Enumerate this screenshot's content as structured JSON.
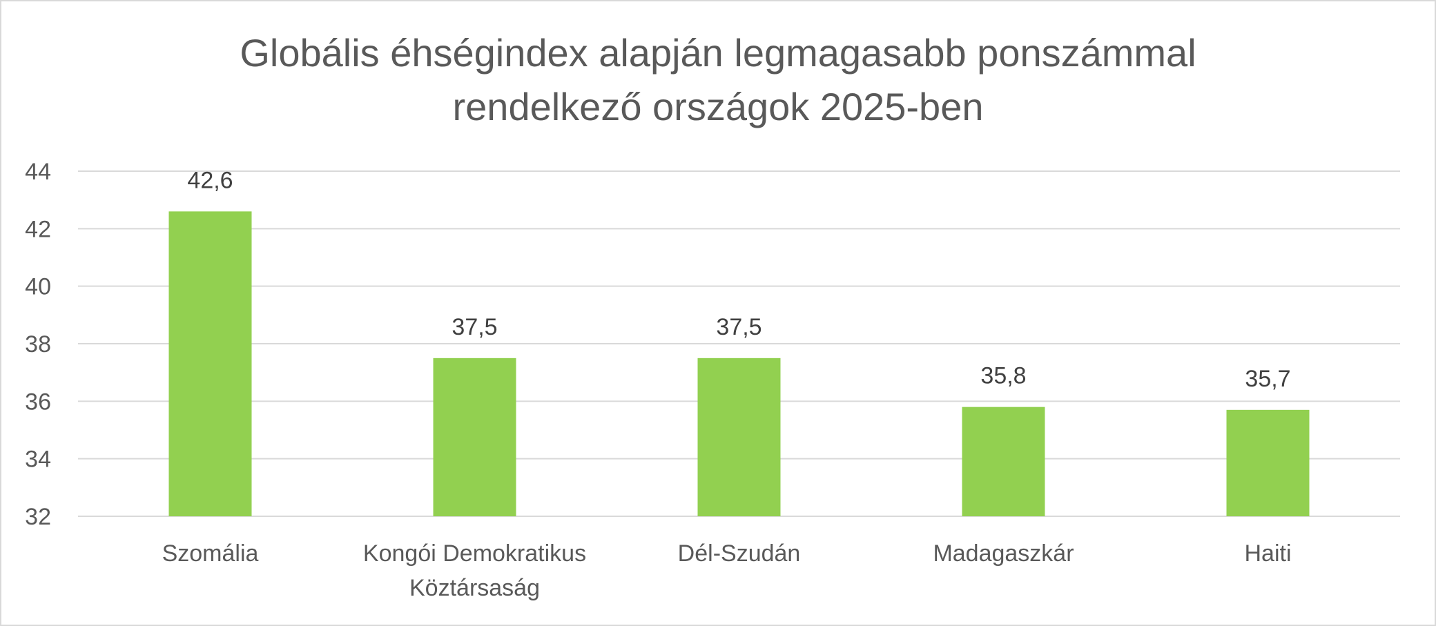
{
  "chart_data": {
    "type": "bar",
    "title": [
      "Globális éhségindex alapján legmagasabb ponszámmal",
      "rendelkező országok 2025-ben"
    ],
    "xlabel": "",
    "ylabel": "",
    "categories": [
      [
        "Szomália"
      ],
      [
        "Kongói Demokratikus",
        "Köztársaság"
      ],
      [
        "Dél-Szudán"
      ],
      [
        "Madagaszkár"
      ],
      [
        "Haiti"
      ]
    ],
    "values": [
      42.6,
      37.5,
      37.5,
      35.8,
      35.7
    ],
    "data_labels": [
      "42,6",
      "37,5",
      "37,5",
      "35,8",
      "35,7"
    ],
    "ylim": [
      32,
      44
    ],
    "yticks": [
      32,
      34,
      36,
      38,
      40,
      42,
      44
    ],
    "grid": true,
    "legend": "none",
    "bar_color": "#92d050",
    "grid_color": "#d9d9d9",
    "text_color": "#595959"
  }
}
